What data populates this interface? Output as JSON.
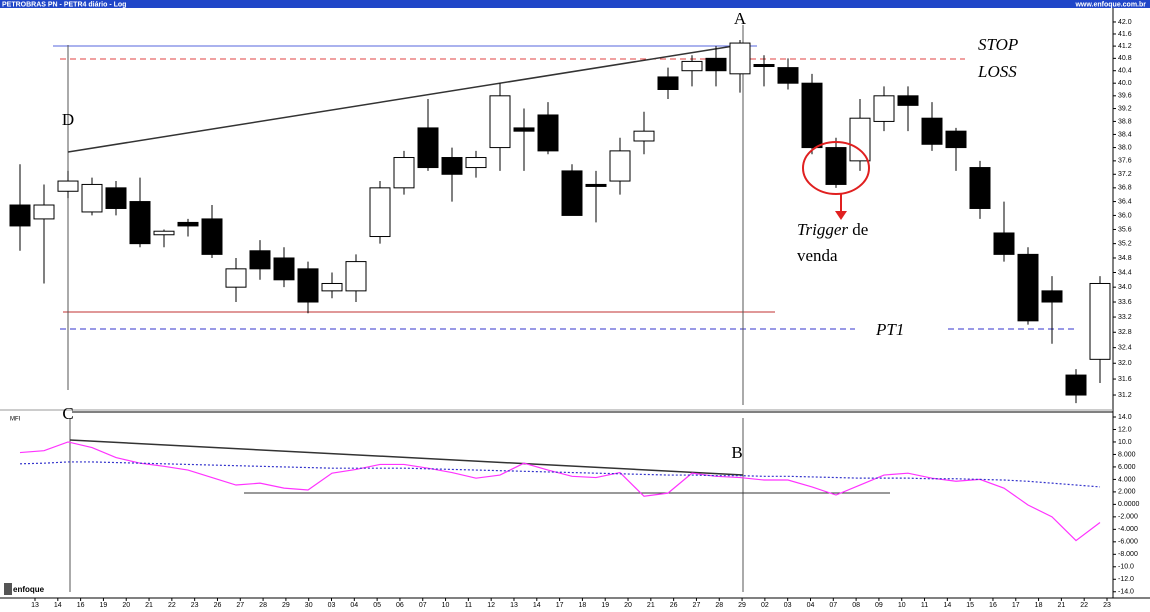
{
  "header": {
    "title": "PETROBRAS  PN - PETR4 diário - Log",
    "site": "www.enfoque.com.br"
  },
  "logo": "enfoque",
  "chart_data": [
    {
      "type": "candlestick",
      "log": true,
      "ylim": [
        30.83,
        42.47
      ],
      "yticks": [
        {
          "value": 42,
          "label": "42.0"
        },
        41.6,
        41.2,
        40.8,
        40.4,
        {
          "value": 40,
          "label": "40.0"
        },
        39.6,
        39.2,
        38.8,
        38.4,
        {
          "value": 38,
          "label": "38.0"
        },
        37.6,
        37.2,
        36.8,
        36.4,
        {
          "value": 36,
          "label": "36.0"
        },
        35.6,
        35.2,
        34.8,
        34.4,
        {
          "value": 34,
          "label": "34.0"
        },
        33.6,
        33.2,
        32.8,
        32.4,
        {
          "value": 32,
          "label": "32.0"
        },
        31.6,
        31.2
      ],
      "open": [
        36.3,
        35.9,
        36.7,
        36.1,
        36.8,
        36.4,
        35.45,
        35.8,
        35.9,
        34.0,
        35.0,
        34.8,
        34.5,
        33.9,
        33.9,
        35.4,
        36.8,
        38.6,
        37.7,
        37.4,
        38.0,
        38.6,
        39.0,
        37.3,
        36.9,
        37.0,
        38.2,
        40.2,
        40.4,
        40.8,
        40.3,
        40.6,
        40.5,
        40.0,
        38.0,
        37.6,
        38.8,
        39.6,
        38.9,
        38.5,
        37.4,
        35.5,
        34.9,
        33.9,
        31.7,
        32.1
      ],
      "close": [
        35.7,
        36.3,
        37.0,
        36.9,
        36.2,
        35.2,
        35.55,
        35.7,
        34.9,
        34.5,
        34.5,
        34.2,
        33.6,
        34.1,
        34.7,
        36.8,
        37.7,
        37.4,
        37.2,
        37.7,
        39.6,
        38.5,
        37.9,
        36.0,
        36.85,
        37.9,
        38.5,
        39.8,
        40.7,
        40.4,
        41.3,
        40.55,
        40.0,
        38.0,
        36.9,
        38.9,
        39.6,
        39.3,
        38.1,
        38.0,
        36.2,
        34.9,
        33.1,
        33.6,
        31.2,
        34.1
      ],
      "high": [
        37.5,
        36.9,
        37.3,
        37.1,
        37.0,
        37.1,
        35.6,
        35.9,
        36.3,
        34.8,
        35.3,
        35.1,
        34.7,
        34.4,
        34.9,
        37.0,
        37.9,
        39.5,
        38.0,
        37.9,
        40.0,
        39.2,
        39.4,
        37.5,
        37.3,
        38.3,
        39.1,
        40.5,
        40.9,
        41.2,
        41.4,
        40.9,
        40.8,
        40.3,
        38.3,
        39.5,
        39.9,
        39.9,
        39.4,
        38.6,
        37.6,
        36.4,
        35.1,
        34.3,
        31.85,
        34.3
      ],
      "low": [
        35.0,
        34.1,
        36.5,
        36.0,
        36.0,
        35.1,
        35.1,
        35.4,
        34.8,
        33.6,
        34.2,
        34.0,
        33.3,
        33.7,
        33.6,
        35.2,
        36.6,
        37.3,
        36.4,
        37.1,
        37.3,
        37.3,
        37.8,
        36.0,
        35.8,
        36.6,
        37.8,
        39.5,
        39.9,
        39.9,
        39.7,
        39.9,
        39.8,
        37.8,
        36.8,
        37.3,
        38.5,
        38.5,
        37.9,
        37.3,
        35.9,
        34.7,
        33.0,
        32.5,
        31.0,
        31.5
      ],
      "annotations": {
        "a": "A",
        "d": "D",
        "stop": "STOP",
        "loss": "LOSS",
        "trigger": "Trigger",
        "de": " de",
        "venda": "venda",
        "pt1": "PT1"
      }
    },
    {
      "type": "line",
      "title": "MFI",
      "ylim": [
        -15,
        14.8
      ],
      "yticks": [
        {
          "value": 14,
          "label": "14.0"
        },
        {
          "value": 12,
          "label": "12.0"
        },
        {
          "value": 10,
          "label": "10.0"
        },
        {
          "value": 8,
          "label": "8.000"
        },
        {
          "value": 6,
          "label": "6.000"
        },
        {
          "value": 4,
          "label": "4.000"
        },
        {
          "value": 2,
          "label": "2.000"
        },
        {
          "value": 0,
          "label": "0.0000"
        },
        {
          "value": -2,
          "label": "-2.000"
        },
        {
          "value": -4,
          "label": "-4.000"
        },
        {
          "value": -6,
          "label": "-6.000"
        },
        {
          "value": -8,
          "label": "-8.000"
        },
        {
          "value": -10,
          "label": "-10.0"
        },
        {
          "value": -12,
          "label": "-12.0"
        },
        {
          "value": -14,
          "label": "-14.0"
        }
      ],
      "xticks": [
        "13",
        "14",
        "16",
        "19",
        "20",
        "21",
        "22",
        "23",
        "26",
        "27",
        "28",
        "29",
        "30",
        "03",
        "04",
        "05",
        "06",
        "07",
        "10",
        "11",
        "12",
        "13",
        "14",
        "17",
        "18",
        "19",
        "20",
        "21",
        "26",
        "27",
        "28",
        "29",
        "02",
        "03",
        "04",
        "07",
        "08",
        "09",
        "10",
        "11",
        "14",
        "15",
        "16",
        "17",
        "18",
        "21",
        "22",
        "23"
      ],
      "series": [
        {
          "color": "#ff33ff",
          "values": [
            8.3,
            8.6,
            10.0,
            9.1,
            7.5,
            6.6,
            6.1,
            5.5,
            4.3,
            3.1,
            3.4,
            2.6,
            2.3,
            5.0,
            5.6,
            6.4,
            6.4,
            5.8,
            5.1,
            4.2,
            4.7,
            6.6,
            5.5,
            4.5,
            4.3,
            5.1,
            1.3,
            1.8,
            5.0,
            4.5,
            4.3,
            3.9,
            3.9,
            2.8,
            1.5,
            3.1,
            4.7,
            5.0,
            4.2,
            3.7,
            4.0,
            2.6,
            -0.1,
            -2.0,
            -5.8,
            -2.9
          ]
        },
        {
          "color": "#3333cc",
          "dotted": true,
          "values": [
            6.5,
            6.6,
            6.8,
            6.8,
            6.7,
            6.6,
            6.5,
            6.4,
            6.3,
            6.2,
            6.1,
            6.0,
            5.9,
            5.8,
            5.8,
            5.8,
            5.8,
            5.7,
            5.6,
            5.5,
            5.4,
            5.3,
            5.2,
            5.1,
            5.0,
            4.9,
            4.8,
            4.7,
            4.7,
            4.6,
            4.6,
            4.5,
            4.5,
            4.4,
            4.3,
            4.2,
            4.2,
            4.2,
            4.1,
            4.1,
            4.0,
            3.9,
            3.7,
            3.4,
            3.1,
            2.8
          ]
        }
      ],
      "annotations": {
        "c": "C",
        "b": "B"
      }
    }
  ]
}
